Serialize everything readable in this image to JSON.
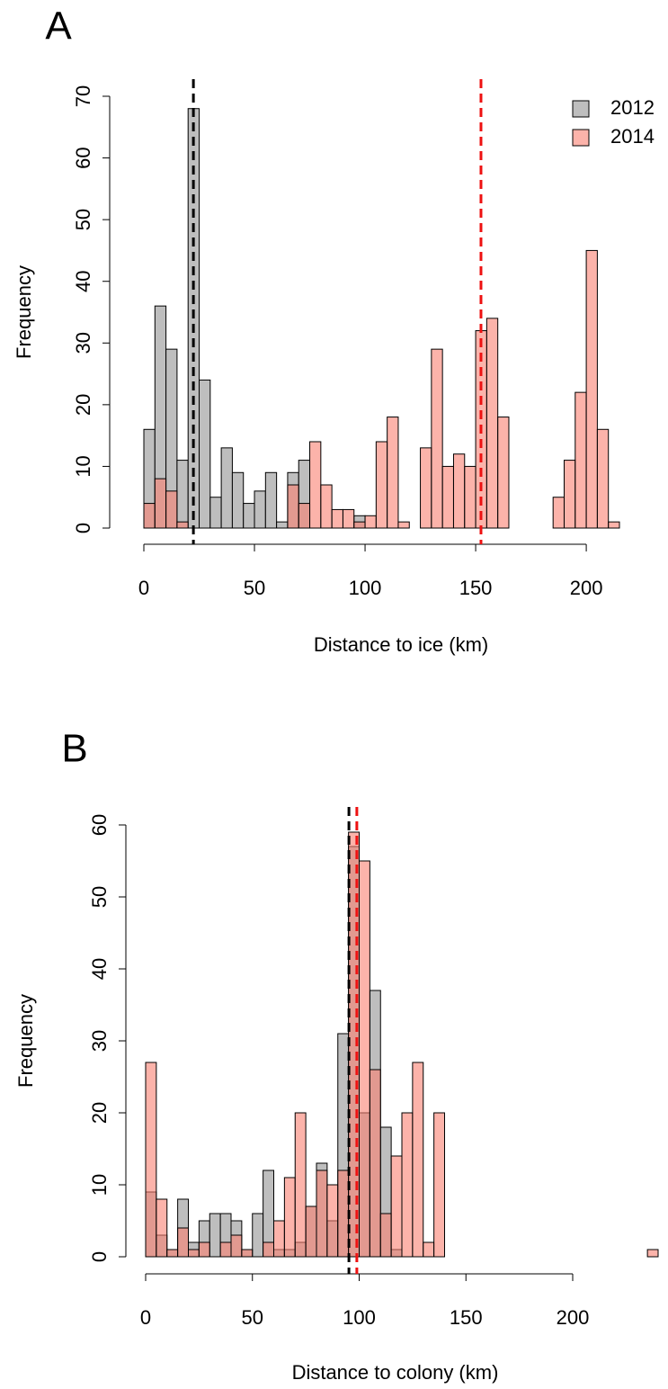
{
  "chart_data": [
    {
      "type": "histogram",
      "panel_label": "A",
      "xlabel": "Distance to ice (km)",
      "ylabel": "Frequency",
      "bins": [
        0,
        5,
        10,
        15,
        20,
        25,
        30,
        35,
        40,
        45,
        50,
        55,
        60,
        65,
        70,
        75,
        80,
        85,
        90,
        95,
        100,
        105,
        110,
        115,
        120,
        125,
        130,
        135,
        140,
        145,
        150,
        155,
        160,
        165,
        170,
        175,
        180,
        185,
        190,
        195,
        200,
        205,
        210,
        215
      ],
      "series": [
        {
          "name": "2012",
          "color": "#bebebe",
          "values": [
            16,
            36,
            29,
            11,
            68,
            24,
            5,
            13,
            9,
            4,
            6,
            9,
            1,
            9,
            11,
            0,
            0,
            0,
            0,
            2,
            0,
            0,
            0,
            0,
            0,
            0,
            0,
            0,
            0,
            0,
            0,
            0,
            0,
            0,
            0,
            0,
            0,
            0,
            0,
            0,
            0,
            0,
            0
          ]
        },
        {
          "name": "2014",
          "color": "#fa8072",
          "values": [
            4,
            8,
            6,
            1,
            0,
            0,
            0,
            0,
            0,
            0,
            0,
            0,
            0,
            7,
            4,
            14,
            7,
            3,
            3,
            1,
            2,
            14,
            18,
            1,
            0,
            13,
            29,
            10,
            12,
            10,
            32,
            34,
            18,
            0,
            0,
            0,
            0,
            5,
            11,
            22,
            45,
            16,
            1
          ]
        }
      ],
      "mean_lines": [
        {
          "value": 22.4,
          "color": "#000000"
        },
        {
          "value": 152.4,
          "color": "#ee1111"
        }
      ],
      "xlim": [
        0,
        215
      ],
      "xticks": [
        0,
        50,
        100,
        150,
        200
      ],
      "ylim": [
        0,
        70
      ],
      "yticks": [
        0,
        10,
        20,
        30,
        40,
        50,
        60,
        70
      ],
      "legend": "topright"
    },
    {
      "type": "histogram",
      "panel_label": "B",
      "xlabel": "Distance to colony (km)",
      "ylabel": "Frequency",
      "bins": [
        0,
        5,
        10,
        15,
        20,
        25,
        30,
        35,
        40,
        45,
        50,
        55,
        60,
        65,
        70,
        75,
        80,
        85,
        90,
        95,
        100,
        105,
        110,
        115,
        120,
        125,
        130,
        135,
        140,
        145,
        150,
        155,
        160,
        165,
        170,
        175,
        180,
        185,
        190,
        195,
        200,
        205,
        210,
        215,
        220,
        225,
        230,
        235,
        240
      ],
      "series": [
        {
          "color": "#bebebe",
          "values": [
            9,
            3,
            1,
            8,
            2,
            5,
            6,
            6,
            5,
            1,
            6,
            12,
            1,
            1,
            2,
            7,
            13,
            5,
            31,
            57,
            20,
            37,
            18,
            1,
            0,
            0,
            0,
            0,
            0,
            0,
            0,
            0,
            0,
            0,
            0,
            0,
            0,
            0,
            0,
            0,
            0,
            0,
            0,
            0,
            0,
            0,
            0,
            0
          ]
        },
        {
          "color": "#fa8072",
          "values": [
            27,
            8,
            1,
            4,
            1,
            2,
            0,
            2,
            3,
            1,
            0,
            2,
            5,
            11,
            20,
            7,
            12,
            10,
            12,
            59,
            55,
            26,
            6,
            14,
            20,
            27,
            2,
            20,
            0,
            0,
            0,
            0,
            0,
            0,
            0,
            0,
            0,
            0,
            0,
            0,
            0,
            0,
            0,
            0,
            0,
            0,
            0,
            1
          ]
        }
      ],
      "mean_lines": [
        {
          "value": 95.2,
          "color": "#000000"
        },
        {
          "value": 98.9,
          "color": "#ee1111"
        }
      ],
      "xlim": [
        0,
        240
      ],
      "xticks": [
        0,
        50,
        100,
        150,
        200
      ],
      "ylim": [
        0,
        60
      ],
      "yticks": [
        0,
        10,
        20,
        30,
        40,
        50,
        60
      ],
      "legend": false
    }
  ]
}
